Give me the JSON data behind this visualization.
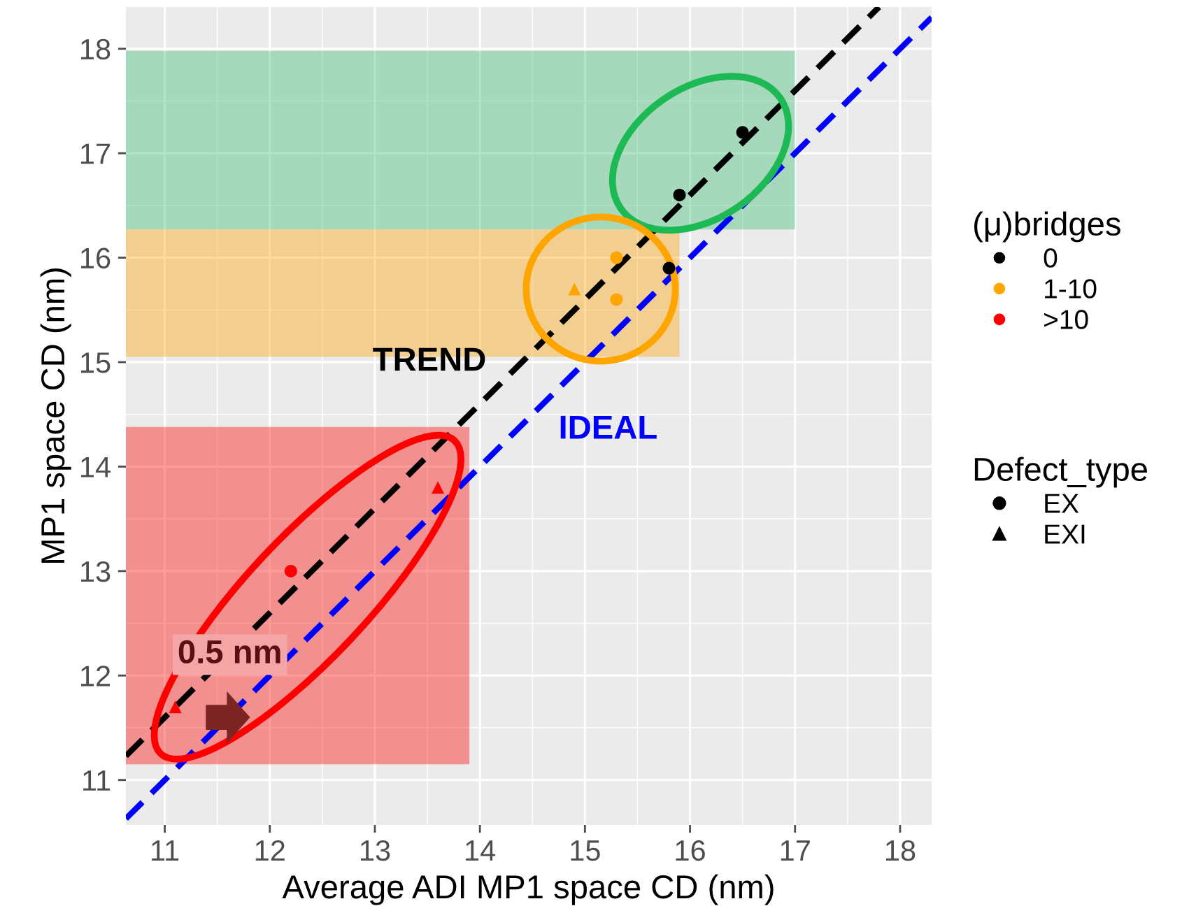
{
  "chart_data": {
    "type": "scatter",
    "xlabel": "Average ADI MP1 space CD (nm)",
    "ylabel": "MP1 space CD (nm)",
    "legend_title": [
      "(μ)bridges",
      "Defect_type"
    ],
    "legend": "right",
    "grid": true,
    "xlim": [
      10.63,
      18.3
    ],
    "ylim": [
      10.57,
      18.4
    ],
    "xticks": [
      11,
      12,
      13,
      14,
      15,
      16,
      17,
      18
    ],
    "yticks": [
      11,
      12,
      13,
      14,
      15,
      16,
      17,
      18
    ],
    "series": [
      {
        "name": "0",
        "color": "#000000",
        "marker": "circle",
        "x": [
          15.8,
          15.9,
          16.5
        ],
        "values": [
          15.9,
          16.6,
          17.2
        ]
      },
      {
        "name": "1-10",
        "color": "#ffa500",
        "marker": "circle",
        "x": [
          15.3,
          15.3
        ],
        "values": [
          16.0,
          15.6
        ]
      },
      {
        "color": "#ffa500",
        "marker": "triangle",
        "x": [
          14.9
        ],
        "values": [
          15.7
        ]
      },
      {
        "name": ">10",
        "color": "#ff0000",
        "marker": "circle",
        "x": [
          12.2
        ],
        "values": [
          13.0
        ]
      },
      {
        "color": "#ff0000",
        "marker": "triangle",
        "x": [
          11.1,
          13.6
        ],
        "values": [
          11.7,
          13.8
        ]
      },
      {
        "name": "TREND",
        "type": "line",
        "color": "#000000",
        "line_style": "dashed",
        "x": [
          10.63,
          17.8
        ],
        "values": [
          11.23,
          18.4
        ]
      },
      {
        "name": "IDEAL",
        "type": "line",
        "color": "#0000ff",
        "line_style": "dashed",
        "x": [
          10.63,
          18.3
        ],
        "values": [
          10.63,
          18.3
        ]
      }
    ],
    "bands": [
      {
        "axis": "y",
        "from": 16.27,
        "to": 17.98,
        "color": "#3ebe76"
      },
      {
        "axis": "y",
        "from": 15.05,
        "to": 16.27,
        "color": "#fca507"
      },
      {
        "axis": "y",
        "from": 11.15,
        "to": 14.38,
        "color": "#fc0505"
      }
    ],
    "annotations": [
      "0.5 nm",
      "EX",
      "EXI"
    ]
  }
}
